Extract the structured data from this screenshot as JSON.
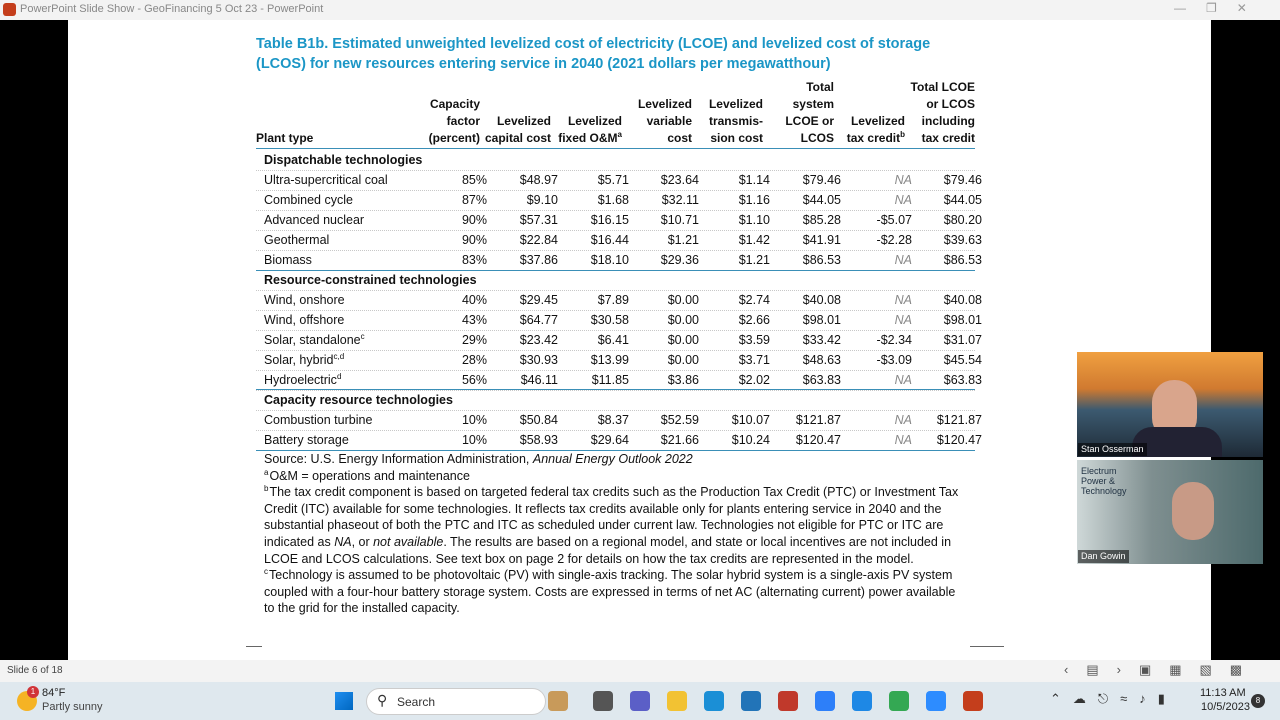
{
  "window": {
    "title": "PowerPoint Slide Show - GeoFinancing 5 Oct 23 - PowerPoint"
  },
  "slide": {
    "title": [
      "Table B1b. Estimated unweighted levelized cost of electricity (LCOE) and levelized cost of storage",
      "(LCOS) for new resources entering service in 2040 (2021 dollars per megawatthour)"
    ],
    "table": {
      "columns": [
        {
          "lines": [
            "Plant type"
          ]
        },
        {
          "lines": [
            "Capacity",
            "factor",
            "(percent)"
          ]
        },
        {
          "lines": [
            "Levelized",
            "capital cost"
          ]
        },
        {
          "lines": [
            "Levelized",
            "fixed O&M"
          ],
          "sup": "a"
        },
        {
          "lines": [
            "Levelized",
            "variable",
            "cost"
          ]
        },
        {
          "lines": [
            "Levelized",
            "transmis-",
            "sion cost"
          ]
        },
        {
          "lines": [
            "Total",
            "system",
            "LCOE or",
            "LCOS"
          ]
        },
        {
          "lines": [
            "Levelized",
            "tax credit"
          ],
          "sup": "b"
        },
        {
          "lines": [
            "Total LCOE",
            "or LCOS",
            "including",
            "tax credit"
          ]
        }
      ],
      "sections": [
        {
          "name": "Dispatchable technologies",
          "rows": [
            {
              "plant": "Ultra-supercritical coal",
              "values": [
                "85%",
                "$48.97",
                "$5.71",
                "$23.64",
                "$1.14",
                "$79.46",
                "NA",
                "$79.46"
              ]
            },
            {
              "plant": "Combined cycle",
              "values": [
                "87%",
                "$9.10",
                "$1.68",
                "$32.11",
                "$1.16",
                "$44.05",
                "NA",
                "$44.05"
              ]
            },
            {
              "plant": "Advanced nuclear",
              "values": [
                "90%",
                "$57.31",
                "$16.15",
                "$10.71",
                "$1.10",
                "$85.28",
                "-$5.07",
                "$80.20"
              ]
            },
            {
              "plant": "Geothermal",
              "values": [
                "90%",
                "$22.84",
                "$16.44",
                "$1.21",
                "$1.42",
                "$41.91",
                "-$2.28",
                "$39.63"
              ]
            },
            {
              "plant": "Biomass",
              "values": [
                "83%",
                "$37.86",
                "$18.10",
                "$29.36",
                "$1.21",
                "$86.53",
                "NA",
                "$86.53"
              ]
            }
          ]
        },
        {
          "name": "Resource-constrained technologies",
          "rows": [
            {
              "plant": "Wind, onshore",
              "values": [
                "40%",
                "$29.45",
                "$7.89",
                "$0.00",
                "$2.74",
                "$40.08",
                "NA",
                "$40.08"
              ]
            },
            {
              "plant": "Wind, offshore",
              "values": [
                "43%",
                "$64.77",
                "$30.58",
                "$0.00",
                "$2.66",
                "$98.01",
                "NA",
                "$98.01"
              ]
            },
            {
              "plant": "Solar, standalone",
              "sup": "c",
              "values": [
                "29%",
                "$23.42",
                "$6.41",
                "$0.00",
                "$3.59",
                "$33.42",
                "-$2.34",
                "$31.07"
              ]
            },
            {
              "plant": "Solar, hybrid",
              "sup": "c,d",
              "values": [
                "28%",
                "$30.93",
                "$13.99",
                "$0.00",
                "$3.71",
                "$48.63",
                "-$3.09",
                "$45.54"
              ]
            },
            {
              "plant": "Hydroelectric",
              "sup": "d",
              "values": [
                "56%",
                "$46.11",
                "$11.85",
                "$3.86",
                "$2.02",
                "$63.83",
                "NA",
                "$63.83"
              ]
            }
          ]
        },
        {
          "name": "Capacity resource technologies",
          "rows": [
            {
              "plant": "Combustion turbine",
              "values": [
                "10%",
                "$50.84",
                "$8.37",
                "$52.59",
                "$10.07",
                "$121.87",
                "NA",
                "$121.87"
              ]
            },
            {
              "plant": "Battery storage",
              "values": [
                "10%",
                "$58.93",
                "$29.64",
                "$21.66",
                "$10.24",
                "$120.47",
                "NA",
                "$120.47"
              ]
            }
          ]
        }
      ]
    },
    "footnotes": [
      {
        "parts": [
          {
            "text": "Source: U.S. Energy Information Administration, "
          },
          {
            "text": "Annual Energy Outlook 2022",
            "italic": true
          }
        ]
      },
      {
        "mark": "a",
        "parts": [
          {
            "text": "O&M = operations and maintenance"
          }
        ]
      },
      {
        "mark": "b",
        "parts": [
          {
            "text": "The tax credit component is based on targeted federal tax credits such as the Production Tax Credit (PTC) or Investment Tax Credit (ITC) available for some technologies. It reflects tax credits available only for plants entering service in 2040 and the substantial phaseout of both the PTC and ITC as scheduled under current law. Technologies not eligible for PTC or ITC are indicated as "
          },
          {
            "text": "NA",
            "italic": true
          },
          {
            "text": ", or "
          },
          {
            "text": "not available",
            "italic": true
          },
          {
            "text": ". The results are based on a regional model, and state or local incentives are not included in LCOE and LCOS calculations. See text box on page 2 for details on how the tax credits are represented in the model."
          }
        ]
      },
      {
        "mark": "c",
        "parts": [
          {
            "text": "Technology is assumed to be photovoltaic (PV) with single-axis tracking. The solar hybrid system is a single-axis PV system coupled with a four-hour battery storage system. Costs are expressed in terms of net AC (alternating current) power available to the grid for the installed capacity."
          }
        ]
      }
    ]
  },
  "video": [
    {
      "name": "Stan Osserman"
    },
    {
      "name": "Dan Gowin",
      "overlay": [
        "Electrum",
        "Power &",
        "Technology"
      ]
    }
  ],
  "status_bar": {
    "slide": "Slide 6 of 18"
  },
  "taskbar": {
    "badge": "1",
    "temperature": "84°F",
    "weather": "Partly sunny",
    "search": "Search",
    "time": "11:13 AM",
    "date": "10/5/2023",
    "notifications": "8"
  }
}
